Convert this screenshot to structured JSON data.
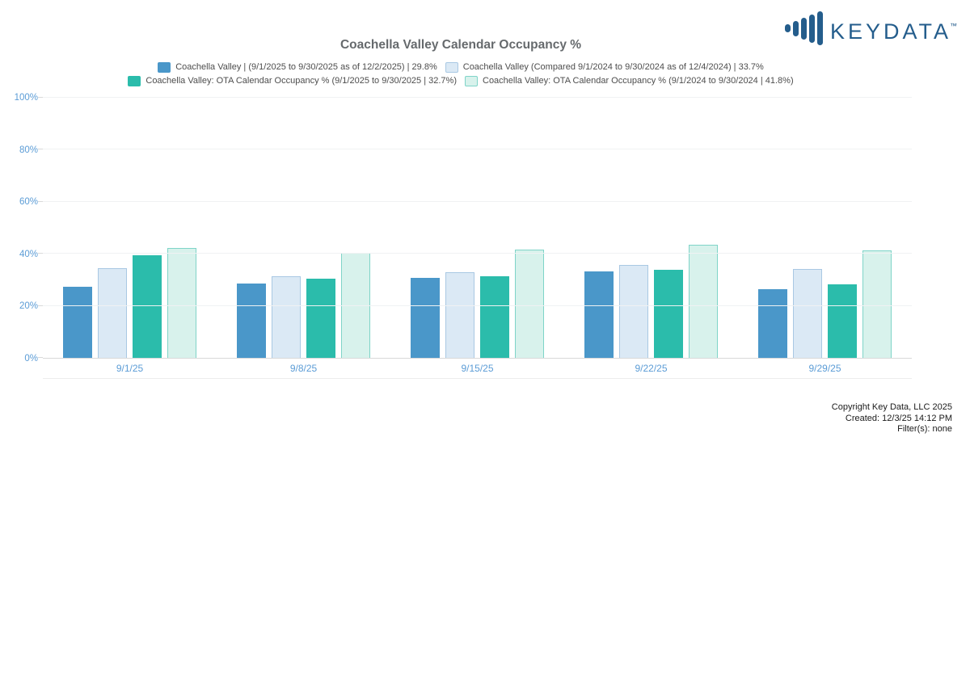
{
  "brand": {
    "logo_text": "KEYDATA",
    "trademark": "TM",
    "logo_icon": "equalizer-bars-icon",
    "logo_color": "#245d8c"
  },
  "chart_data": {
    "type": "bar",
    "title": "Coachella Valley Calendar Occupancy %",
    "categories": [
      "9/1/25",
      "9/8/25",
      "9/15/25",
      "9/22/25",
      "9/29/25"
    ],
    "series": [
      {
        "name": "Coachella Valley | (9/1/2025 to 9/30/2025 as of 12/2/2025) | 29.8%",
        "color": "#4a97c9",
        "border_color": "#4a97c9",
        "values": [
          27.2,
          28.7,
          30.9,
          33.3,
          26.4
        ]
      },
      {
        "name": "Coachella Valley (Compared 9/1/2024 to 9/30/2024 as of 12/4/2024) | 33.7%",
        "color": "#dbe9f5",
        "border_color": "#a9c8e3",
        "values": [
          34.5,
          31.5,
          33.0,
          35.6,
          34.2
        ]
      },
      {
        "name": "Coachella Valley: OTA Calendar Occupancy % (9/1/2025 to 9/30/2025 | 32.7%)",
        "color": "#2bbcab",
        "border_color": "#2bbcab",
        "values": [
          39.5,
          30.4,
          31.5,
          34.0,
          28.3
        ]
      },
      {
        "name": "Coachella Valley: OTA Calendar Occupancy % (9/1/2024 to 9/30/2024 | 41.8%)",
        "color": "#d8f2ec",
        "border_color": "#7fd4c8",
        "values": [
          42.3,
          40.4,
          41.5,
          43.4,
          41.2
        ]
      }
    ],
    "ylim": [
      0,
      100
    ],
    "yticks": [
      0,
      20,
      40,
      60,
      80,
      100
    ],
    "ytick_labels": [
      "0%",
      "20%",
      "40%",
      "60%",
      "80%",
      "100%"
    ],
    "axis_label_color": "#5b9cd6",
    "grid": true,
    "legend_position": "top"
  },
  "footer": {
    "copyright": "Copyright Key Data, LLC 2025",
    "created": "Created: 12/3/25 14:12 PM",
    "filters": "Filter(s): none"
  }
}
